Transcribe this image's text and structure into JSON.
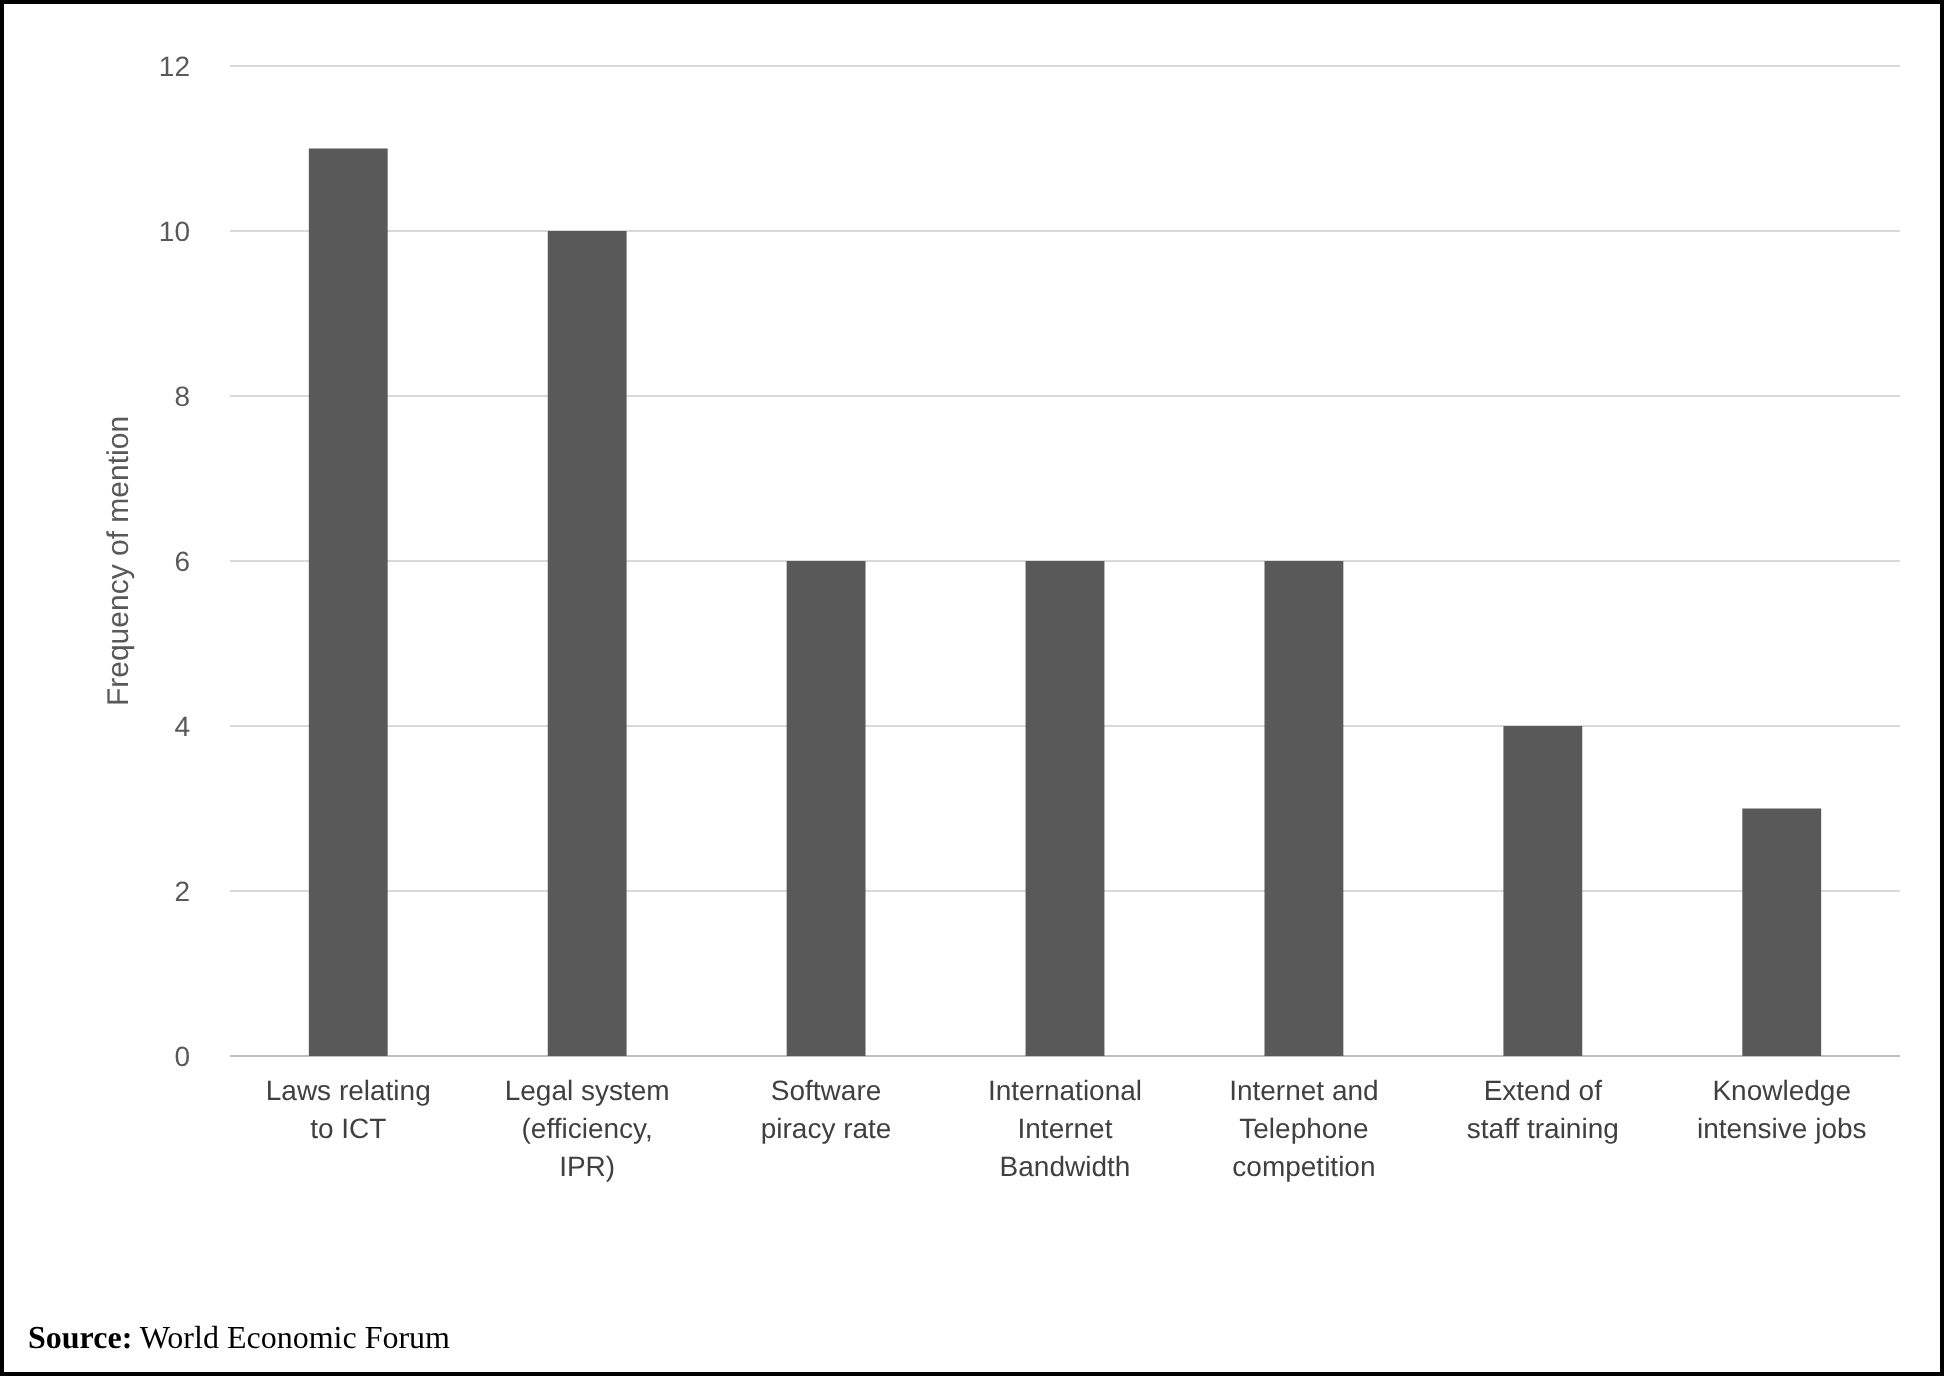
{
  "chart_data": {
    "type": "bar",
    "ylabel": "Frequency of mention",
    "categories": [
      "Laws relating to ICT",
      "Legal system (efficiency, IPR)",
      "Software piracy rate",
      "International Internet Bandwidth",
      "Internet and Telephone competition",
      "Extend of staff training",
      "Knowledge intensive jobs"
    ],
    "values": [
      11,
      10,
      6,
      6,
      6,
      4,
      3
    ],
    "color": "#595959",
    "ylim": [
      0,
      12
    ],
    "yticks": [
      0,
      2,
      4,
      6,
      8,
      10,
      12
    ],
    "grid": "y",
    "annotations": [
      "Source: World Economic Forum"
    ]
  }
}
